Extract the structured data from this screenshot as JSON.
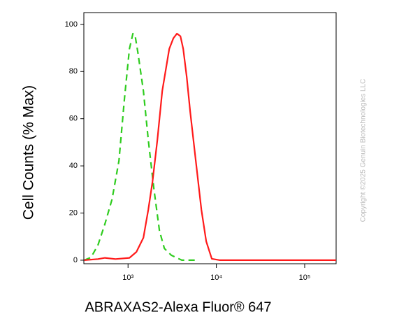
{
  "chart_data": {
    "type": "line",
    "xlabel": "ABRAXAS2-Alexa Fluor® 647",
    "ylabel": "Cell Counts (% Max)",
    "watermark": "Copyright ©2025 Genuin Biotechnologies LLC",
    "xscale": "log",
    "xlim": [
      316,
      227000
    ],
    "ylim": [
      -1.5,
      105
    ],
    "xticks": [
      {
        "value": 1000,
        "label": "10³"
      },
      {
        "value": 10000,
        "label": "10⁴"
      },
      {
        "value": 100000,
        "label": "10⁵"
      }
    ],
    "yticks": [
      0,
      20,
      40,
      60,
      80,
      100
    ],
    "series": [
      {
        "color": "#2ecc1e",
        "linestyle": "dashed",
        "x": [
          320,
          381,
          457,
          548,
          658,
          789,
          912,
          1037,
          1136,
          1200,
          1291,
          1493,
          1695,
          1960,
          2268,
          2577,
          3090,
          4063,
          5848
        ],
        "values": [
          0,
          1.2,
          6.5,
          15.4,
          25.8,
          42.1,
          68.8,
          89.6,
          96.1,
          95.5,
          88.1,
          71.8,
          51,
          30.3,
          12.5,
          5,
          2.1,
          0,
          0
        ]
      },
      {
        "color": "#ff1a1a",
        "linestyle": "solid",
        "x": [
          320,
          457,
          548,
          720,
          1037,
          1244,
          1493,
          1695,
          1890,
          2147,
          2439,
          2673,
          2928,
          3260,
          3576,
          3920,
          4218,
          4617,
          5055,
          5848,
          6766,
          7674,
          8880,
          11000,
          227000
        ],
        "values": [
          0,
          0.5,
          1,
          0.5,
          1,
          3.5,
          9.5,
          21.4,
          33.2,
          51,
          71.8,
          80.7,
          89.6,
          94.1,
          96.1,
          95,
          89.6,
          77.7,
          62.9,
          42.1,
          21.4,
          8,
          0.6,
          0,
          0
        ]
      }
    ]
  }
}
